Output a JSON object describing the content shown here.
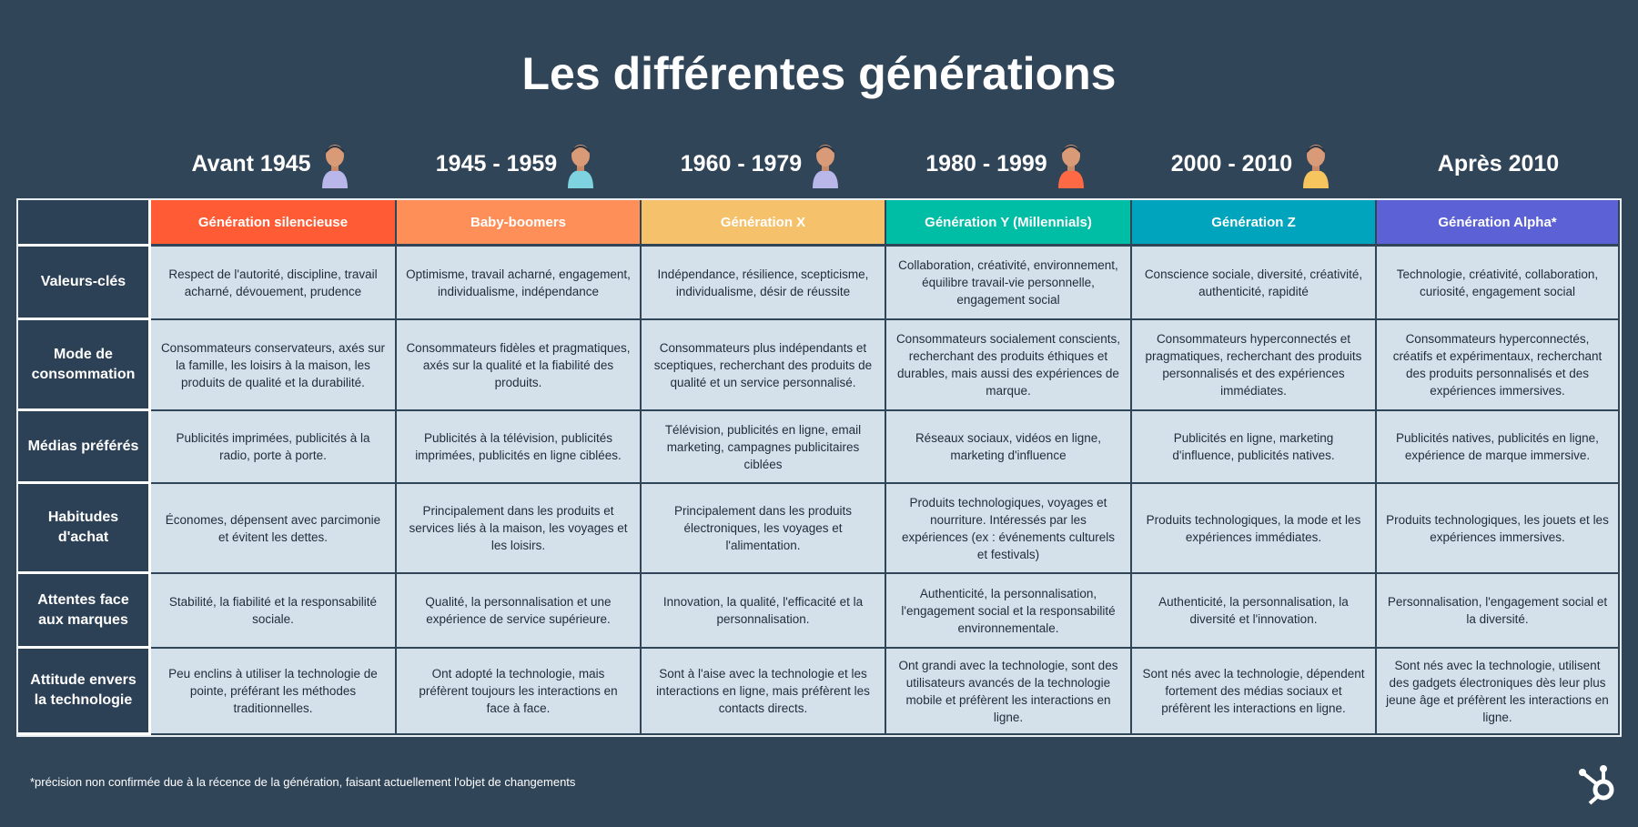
{
  "title": "Les différentes générations",
  "colors": {
    "background": "#314559",
    "cell": "#d4e0ea",
    "label": "#2d4156"
  },
  "generations": [
    {
      "years": "Avant 1945",
      "name": "Génération silencieuse",
      "color": "#ff5c35",
      "avatar_color": "#b9b6ea"
    },
    {
      "years": "1945 - 1959",
      "name": "Baby-boomers",
      "color": "#ff8f59",
      "avatar_color": "#7fd3e0"
    },
    {
      "years": "1960 - 1979",
      "name": "Génération X",
      "color": "#f5c26b",
      "avatar_color": "#b9b6ea"
    },
    {
      "years": "1980 - 1999",
      "name": "Génération Y (Millennials)",
      "color": "#00bda5",
      "avatar_color": "#ff6a45"
    },
    {
      "years": "2000 - 2010",
      "name": "Génération Z",
      "color": "#00a4bd",
      "avatar_color": "#f7c55e"
    },
    {
      "years": "Après 2010",
      "name": "Génération Alpha*",
      "color": "#5c62d6",
      "avatar_color": ""
    }
  ],
  "rows": [
    {
      "label": "Valeurs-clés",
      "cells": [
        "Respect de l'autorité, discipline, travail acharné, dévouement, prudence",
        "Optimisme, travail acharné, engagement, individualisme, indépendance",
        "Indépendance, résilience, scepticisme, individualisme, désir de réussite",
        "Collaboration, créativité, environnement, équilibre travail-vie personnelle, engagement social",
        "Conscience sociale, diversité, créativité, authenticité, rapidité",
        "Technologie, créativité, collaboration, curiosité, engagement social"
      ]
    },
    {
      "label": "Mode de consommation",
      "cells": [
        "Consommateurs conservateurs, axés sur la famille, les loisirs à la maison, les produits de qualité et la durabilité.",
        "Consommateurs fidèles et pragmatiques, axés sur la qualité et la fiabilité des produits.",
        "Consommateurs plus indépendants et sceptiques, recherchant des produits de qualité et un service personnalisé.",
        "Consommateurs socialement conscients, recherchant des produits éthiques et durables, mais aussi des expériences de marque.",
        "Consommateurs hyperconnectés et pragmatiques, recherchant des produits personnalisés et des expériences immédiates.",
        "Consommateurs hyperconnectés, créatifs et expérimentaux, recherchant des produits personnalisés et des expériences immersives."
      ]
    },
    {
      "label": "Médias préférés",
      "cells": [
        "Publicités imprimées, publicités à la radio, porte à porte.",
        "Publicités à la télévision, publicités imprimées, publicités en ligne ciblées.",
        "Télévision, publicités en ligne, email marketing, campagnes publicitaires ciblées",
        "Réseaux sociaux, vidéos en ligne, marketing d'influence",
        "Publicités en ligne, marketing d'influence, publicités natives.",
        "Publicités natives, publicités en ligne, expérience de marque immersive."
      ]
    },
    {
      "label": "Habitudes d'achat",
      "cells": [
        "Économes, dépensent avec parcimonie et évitent les dettes.",
        "Principalement dans les produits et services liés à la maison, les voyages et les loisirs.",
        "Principalement dans les produits électroniques, les voyages et l'alimentation.",
        "Produits technologiques, voyages et nourriture. Intéressés par les expériences (ex : événements culturels et festivals)",
        "Produits technologiques, la mode et les expériences immédiates.",
        "Produits technologiques, les jouets et les expériences immersives."
      ]
    },
    {
      "label": "Attentes face aux marques",
      "cells": [
        "Stabilité, la fiabilité et la responsabilité sociale.",
        "Qualité, la personnalisation et une expérience de service supérieure.",
        "Innovation, la qualité, l'efficacité et la personnalisation.",
        "Authenticité, la personnalisation, l'engagement social et la responsabilité environnementale.",
        "Authenticité, la personnalisation, la diversité et l'innovation.",
        "Personnalisation, l'engagement social et la diversité."
      ]
    },
    {
      "label": "Attitude envers la technologie",
      "cells": [
        "Peu enclins à utiliser la technologie de pointe, préférant les méthodes traditionnelles.",
        "Ont adopté la technologie, mais préfèrent toujours les interactions en face à face.",
        "Sont à l'aise avec la technologie et les interactions en ligne, mais préfèrent les contacts directs.",
        "Ont grandi avec la technologie, sont des utilisateurs avancés de la technologie mobile et préfèrent les interactions en ligne.",
        "Sont nés avec la technologie, dépendent fortement des médias sociaux et préfèrent les interactions en ligne.",
        "Sont nés avec la technologie, utilisent des gadgets électroniques dès leur plus jeune âge et préfèrent les interactions en ligne."
      ]
    }
  ],
  "footnote": "*précision non confirmée due à la récence de la génération, faisant actuellement l'objet de changements",
  "logo": {
    "icon": "hubspot-logo-icon"
  }
}
